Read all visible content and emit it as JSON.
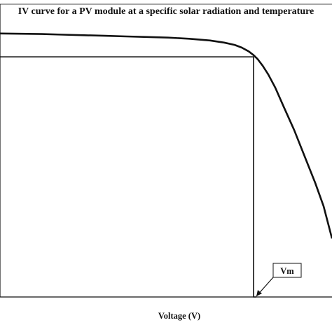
{
  "chart_data": {
    "type": "line",
    "title": "IV curve for a PV module at a specific solar radiation and temperature",
    "xlabel": "Voltage (V)",
    "ylabel": "",
    "grid": false,
    "series": [
      {
        "x": [
          0,
          30,
          60,
          90,
          120,
          150,
          180,
          210,
          240,
          270,
          300,
          320,
          335,
          345,
          355,
          362,
          368,
          375,
          383,
          393,
          405,
          420,
          435,
          450,
          462,
          474
        ],
        "y": [
          0.9,
          0.899,
          0.898,
          0.896,
          0.894,
          0.892,
          0.89,
          0.888,
          0.886,
          0.882,
          0.876,
          0.869,
          0.861,
          0.852,
          0.839,
          0.826,
          0.812,
          0.79,
          0.76,
          0.715,
          0.65,
          0.57,
          0.48,
          0.39,
          0.31,
          0.2
        ]
      },
      {
        "x": [
          0,
          362,
          362,
          366
        ],
        "y": [
          0.82,
          0.82,
          0.0,
          0.0
        ]
      }
    ],
    "xlim": [
      0,
      474
    ],
    "ylim": [
      0,
      1
    ],
    "annotations": [
      {
        "text": "Vm",
        "x": 362,
        "y": 0.0
      }
    ]
  }
}
